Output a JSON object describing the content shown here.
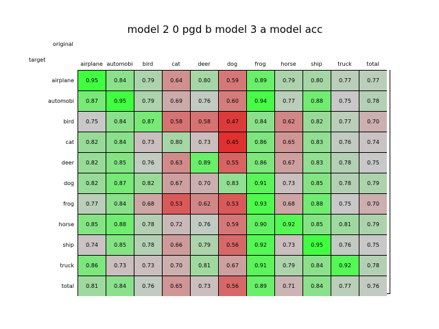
{
  "chart_data": {
    "type": "heatmap",
    "title": "model 2 0 pgd b model 3 a model acc",
    "col_axis_label": "original",
    "row_axis_label": "target",
    "columns": [
      "airplane",
      "automobi",
      "bird",
      "cat",
      "deer",
      "dog",
      "frog",
      "horse",
      "ship",
      "truck",
      "total"
    ],
    "rows": [
      "airplane",
      "automobi",
      "bird",
      "cat",
      "deer",
      "dog",
      "frog",
      "horse",
      "ship",
      "truck",
      "total"
    ],
    "values": [
      [
        0.95,
        0.84,
        0.79,
        0.64,
        0.8,
        0.59,
        0.89,
        0.79,
        0.8,
        0.77,
        0.77
      ],
      [
        0.87,
        0.95,
        0.79,
        0.69,
        0.76,
        0.6,
        0.94,
        0.77,
        0.88,
        0.75,
        0.78
      ],
      [
        0.75,
        0.84,
        0.87,
        0.58,
        0.58,
        0.47,
        0.84,
        0.62,
        0.82,
        0.77,
        0.7
      ],
      [
        0.82,
        0.84,
        0.73,
        0.8,
        0.73,
        0.45,
        0.86,
        0.65,
        0.83,
        0.76,
        0.74
      ],
      [
        0.82,
        0.85,
        0.76,
        0.63,
        0.89,
        0.55,
        0.86,
        0.67,
        0.83,
        0.78,
        0.75
      ],
      [
        0.82,
        0.87,
        0.82,
        0.67,
        0.7,
        0.83,
        0.91,
        0.73,
        0.85,
        0.78,
        0.79
      ],
      [
        0.77,
        0.84,
        0.68,
        0.53,
        0.62,
        0.53,
        0.93,
        0.68,
        0.88,
        0.75,
        0.7
      ],
      [
        0.85,
        0.88,
        0.78,
        0.72,
        0.76,
        0.59,
        0.9,
        0.92,
        0.85,
        0.81,
        0.79
      ],
      [
        0.74,
        0.85,
        0.78,
        0.66,
        0.79,
        0.56,
        0.92,
        0.73,
        0.95,
        0.76,
        0.75
      ],
      [
        0.86,
        0.73,
        0.73,
        0.7,
        0.81,
        0.67,
        0.91,
        0.79,
        0.84,
        0.92,
        0.78
      ],
      [
        0.81,
        0.84,
        0.76,
        0.65,
        0.73,
        0.56,
        0.89,
        0.71,
        0.84,
        0.77,
        0.76
      ]
    ],
    "color_low": "#e03030",
    "color_mid": "#c8c8c8",
    "color_high": "#40ff40"
  }
}
